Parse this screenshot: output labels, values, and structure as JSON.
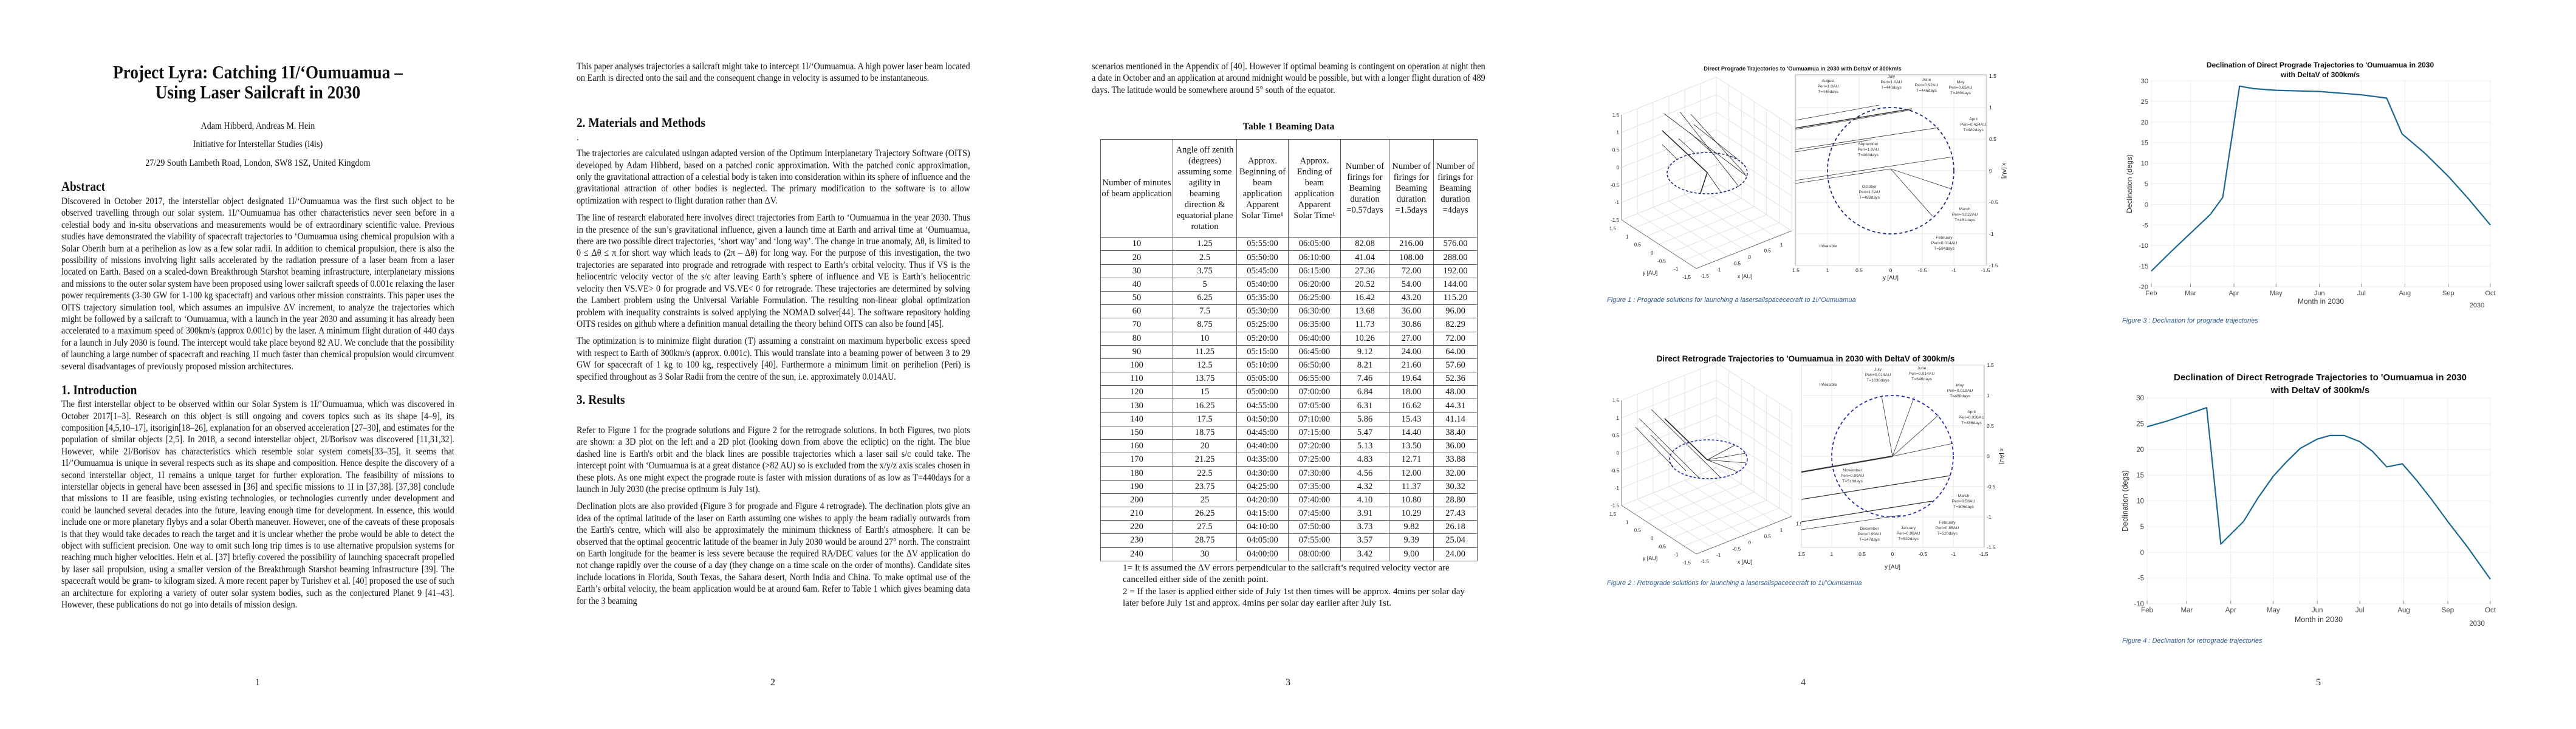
{
  "page1": {
    "title_line1": "Project Lyra: Catching 1I/‘Oumuamua –",
    "title_line2": "Using Laser Sailcraft in 2030",
    "authors": "Adam Hibberd, Andreas M. Hein",
    "institution": "Initiative for Interstellar Studies (i4is)",
    "address": "27/29 South Lambeth Road, London, SW8 1SZ, United Kingdom",
    "abstract_heading": "Abstract",
    "abstract": "Discovered in October 2017, the interstellar object designated 1I/‘Oumuamua was the first such object to be observed travelling through our solar system. 1I/‘Oumuamua has other characteristics never seen before in a celestial body and in-situ observations and measurements would be of extraordinary scientific value. Previous studies have demonstrated the viability of spacecraft trajectories to ‘Oumuamua using chemical propulsion with a Solar Oberth burn at a perihelion as low as a few solar radii. In addition to chemical propulsion, there is also the possibility of missions involving light sails accelerated by the radiation pressure of a laser beam from a laser located on Earth. Based on a scaled-down Breakthrough Starshot beaming infrastructure, interplanetary missions and missions to the outer solar system have been proposed using lower sailcraft speeds of 0.001c relaxing the laser power requirements (3-30 GW for 1-100 kg spacecraft) and various other mission constraints. This paper uses the OITS trajectory simulation tool, which assumes an impulsive ΔV increment, to analyze the trajectories which might be followed by a sailcraft to ‘Oumuamua, with a launch in the year 2030 and assuming it has already been accelerated to a maximum speed of 300km/s (approx 0.001c) by the laser. A minimum flight duration of 440 days for a launch in July 2030 is found. The intercept would take place beyond 82 AU. We conclude that the possibility of launching a large number of spacecraft and reaching 1I much faster than chemical propulsion would circumvent several disadvantages of previously proposed mission architectures.",
    "intro_heading": "1. Introduction",
    "intro": "The first interstellar object to be observed within our Solar System is 1I/’Oumuamua, which was discovered in October 2017[1–3]. Research on this object is still ongoing and covers topics such as its shape [4–9], its composition [4,5,10–17], itsorigin[18–26], explanation for an observed acceleration [27–30], and estimates for the population of similar objects [2,5]. In 2018, a second interstellar object, 2I/Borisov was discovered [11,31,32]. However, while 2I/Borisov has characteristics which resemble solar system comets[33–35], it seems that 1I/’Oumuamua is unique in several respects such as its shape and composition. Hence despite the discovery of a second interstellar object, 1I remains a unique target for further exploration. The feasibility of missions to interstellar objects in general have been assessed in [36] and specific missions to 1I in [37,38]. [37,38] conclude that missions to 1I are feasible, using existing technologies, or technologies currently under development and could be launched several decades into the future, leaving enough time for development. In essence, this would include one or more planetary flybys and a solar Oberth maneuver. However, one of the caveats of these proposals is that they would take decades to reach the target and it is unclear whether the probe would be able to detect the object with sufficient precision. One way to omit such long trip times is to use alternative propulsion systems for reaching much higher velocities. Hein et al. [37] briefly covered the possibility of launching spacecraft propelled by laser sail propulsion, using a smaller version of the Breakthrough Starshot beaming infrastructure [39]. The spacecraft would be gram- to kilogram sized. A more recent paper by Turishev et al. [40] proposed the use of such an architecture for exploring a variety of outer solar system bodies, such as the conjectured Planet 9 [41–43]. However, these publications do not go into details of mission design.",
    "page_number": "1"
  },
  "page2": {
    "p1": "This paper analyses trajectories a sailcraft might take to intercept 1I/‘Oumuamua. A high power laser beam located on Earth is directed onto the sail and the consequent change in velocity is assumed to be instantaneous.",
    "methods_heading": "2. Materials and Methods",
    "stray_dot": ".",
    "p2": "The trajectories are calculated usingan adapted version of the Optimum Interplanetary Trajectory Software (OITS) developed by Adam Hibberd, based on a patched conic approximation. With the patched conic approximation, only the gravitational attraction of a celestial body is taken into consideration within its sphere of influence and the gravitational attraction of other bodies is neglected. The primary modification to the software is to allow optimization with respect to flight duration rather than ΔV.",
    "p3": "The line of research elaborated here involves direct trajectories from Earth to ‘Oumuamua in the year 2030. Thus in the presence of the sun’s gravitational influence, given a launch time at Earth and arrival time at ‘Oumuamua, there are two possible direct trajectories, ‘short way’ and ‘long way’. The change in true anomaly, Δθ, is limited to 0 ≤ Δθ ≤ π for short way which leads to (2π – Δθ) for long way. For the purpose of this investigation, the two trajectories are separated into prograde and retrograde with respect to Earth’s orbital velocity. Thus if VS is the heliocentric velocity vector of the s/c after leaving Earth’s sphere of influence and VE is Earth’s heliocentric velocity then VS.VE> 0 for prograde and VS.VE< 0 for retrograde. These trajectories are determined by solving the Lambert problem using the Universal Variable Formulation. The resulting non-linear global optimization problem with inequality constraints is solved applying the NOMAD solver[44]. The software repository holding OITS resides on github where a definition manual detailing the theory behind OITS can also be found [45].",
    "p4": "The optimization is to minimize flight duration (T) assuming a constraint on maximum hyperbolic excess speed with respect to Earth of 300km/s (approx. 0.001c). This would translate into a beaming power of between 3 to 29 GW for spacecraft of 1 kg to 100 kg, respectively [40]. Furthermore a minimum limit on perihelion (Peri) is specified throughout as 3 Solar Radii from the centre of the sun, i.e. approximately 0.014AU.",
    "results_heading": "3. Results",
    "p5": "Refer to Figure 1 for the prograde solutions and Figure 2 for the retrograde solutions. In both Figures, two plots are shown: a 3D plot on the left and a 2D plot (looking down from above the ecliptic) on the right. The blue dashed line is Earth's orbit and the black lines are possible trajectories which a laser sail s/c could take. The intercept point with ‘Oumuamua is at a great distance (>82 AU) so is excluded from the x/y/z axis scales chosen in these plots. As one might expect the prograde route is faster with mission durations of as low as T=440days for a launch in July 2030 (the precise optimum is July 1st).",
    "p6": "Declination plots are also provided (Figure 3 for prograde and Figure 4 retrograde). The declination plots give an idea of the optimal latitude of the laser on Earth assuming one wishes to apply the beam radially outwards from the Earth's centre, which will also be approximately the minimum thickness of Earth's atmosphere. It can be observed that the optimal geocentric latitude of the beamer in July 2030 would be around 27° north. The constraint on Earth longitude for the beamer is less severe because the required RA/DEC values for the ΔV application do not change rapidly over the course of a day (they change on a time scale on the order of months). Candidate sites include locations in Florida, South Texas, the Sahara desert, North India and China. To make optimal use of the Earth’s orbital velocity, the beam application would be at around 6am. Refer to Table 1 which gives beaming data for the 3 beaming",
    "page_number": "2"
  },
  "page3": {
    "p1": "scenarios mentioned in the Appendix of [40]. However if optimal beaming is contingent on operation at night then a date in October and an application at around midnight would be possible, but with a longer flight duration of 489 days. The latitude would be somewhere around 5° south of the equator.",
    "table_title": "Table 1 Beaming Data",
    "table_headers": [
      "Number of minutes of beam application",
      "Angle off zenith (degrees) assuming some agility in beaming direction & equatorial plane rotation",
      "Approx. Beginning of beam application Apparent Solar Time¹",
      "Approx. Ending of beam application Apparent Solar Time¹",
      "Number of firings for Beaming duration =0.57days",
      "Number of firings for Beaming duration =1.5days",
      "Number of firings for Beaming duration =4days"
    ],
    "table_rows": [
      [
        "10",
        "1.25",
        "05:55:00",
        "06:05:00",
        "82.08",
        "216.00",
        "576.00"
      ],
      [
        "20",
        "2.5",
        "05:50:00",
        "06:10:00",
        "41.04",
        "108.00",
        "288.00"
      ],
      [
        "30",
        "3.75",
        "05:45:00",
        "06:15:00",
        "27.36",
        "72.00",
        "192.00"
      ],
      [
        "40",
        "5",
        "05:40:00",
        "06:20:00",
        "20.52",
        "54.00",
        "144.00"
      ],
      [
        "50",
        "6.25",
        "05:35:00",
        "06:25:00",
        "16.42",
        "43.20",
        "115.20"
      ],
      [
        "60",
        "7.5",
        "05:30:00",
        "06:30:00",
        "13.68",
        "36.00",
        "96.00"
      ],
      [
        "70",
        "8.75",
        "05:25:00",
        "06:35:00",
        "11.73",
        "30.86",
        "82.29"
      ],
      [
        "80",
        "10",
        "05:20:00",
        "06:40:00",
        "10.26",
        "27.00",
        "72.00"
      ],
      [
        "90",
        "11.25",
        "05:15:00",
        "06:45:00",
        "9.12",
        "24.00",
        "64.00"
      ],
      [
        "100",
        "12.5",
        "05:10:00",
        "06:50:00",
        "8.21",
        "21.60",
        "57.60"
      ],
      [
        "110",
        "13.75",
        "05:05:00",
        "06:55:00",
        "7.46",
        "19.64",
        "52.36"
      ],
      [
        "120",
        "15",
        "05:00:00",
        "07:00:00",
        "6.84",
        "18.00",
        "48.00"
      ],
      [
        "130",
        "16.25",
        "04:55:00",
        "07:05:00",
        "6.31",
        "16.62",
        "44.31"
      ],
      [
        "140",
        "17.5",
        "04:50:00",
        "07:10:00",
        "5.86",
        "15.43",
        "41.14"
      ],
      [
        "150",
        "18.75",
        "04:45:00",
        "07:15:00",
        "5.47",
        "14.40",
        "38.40"
      ],
      [
        "160",
        "20",
        "04:40:00",
        "07:20:00",
        "5.13",
        "13.50",
        "36.00"
      ],
      [
        "170",
        "21.25",
        "04:35:00",
        "07:25:00",
        "4.83",
        "12.71",
        "33.88"
      ],
      [
        "180",
        "22.5",
        "04:30:00",
        "07:30:00",
        "4.56",
        "12.00",
        "32.00"
      ],
      [
        "190",
        "23.75",
        "04:25:00",
        "07:35:00",
        "4.32",
        "11.37",
        "30.32"
      ],
      [
        "200",
        "25",
        "04:20:00",
        "07:40:00",
        "4.10",
        "10.80",
        "28.80"
      ],
      [
        "210",
        "26.25",
        "04:15:00",
        "07:45:00",
        "3.91",
        "10.29",
        "27.43"
      ],
      [
        "220",
        "27.5",
        "04:10:00",
        "07:50:00",
        "3.73",
        "9.82",
        "26.18"
      ],
      [
        "230",
        "28.75",
        "04:05:00",
        "07:55:00",
        "3.57",
        "9.39",
        "25.04"
      ],
      [
        "240",
        "30",
        "04:00:00",
        "08:00:00",
        "3.42",
        "9.00",
        "24.00"
      ]
    ],
    "footnote1": "1=  It is assumed the ΔV errors perpendicular to the sailcraft’s required velocity vector are cancelled either side of the zenith point.",
    "footnote2": "2 = If the laser is applied either side of July 1st then times will be approx. 4mins per solar day later before July 1st and approx. 4mins per solar day earlier after July 1st.",
    "page_number": "3"
  },
  "page4": {
    "page_number": "4",
    "fig1": {
      "title": "Direct Prograde Trajectories to 'Oumuamua in 2030 with DeltaV of 300km/s",
      "caption": "Figure 1 : Prograde solutions for launching a lasersailspacececraft to 1I/’Oumuamua",
      "earth_orbit_color": "#1f2f7a",
      "annotations": [
        {
          "lines": [
            "August",
            "Peri=1.0AU",
            "T=446days"
          ]
        },
        {
          "lines": [
            "July",
            "Peri=1.0AU",
            "T=440days"
          ]
        },
        {
          "lines": [
            "June",
            "Peri=0.92AU",
            "T=446days"
          ]
        },
        {
          "lines": [
            "May",
            "Peri=0.65AU",
            "T=460days"
          ]
        },
        {
          "lines": [
            "April",
            "Peri=0.424AU",
            "T=482days"
          ]
        },
        {
          "lines": [
            "September",
            "Peri=1.0AU",
            "T=463days"
          ]
        },
        {
          "lines": [
            "October",
            "Peri=1.0AU",
            "T=489days"
          ]
        },
        {
          "lines": [
            "March",
            "Peri=0.022AU",
            "T=481days"
          ]
        },
        {
          "lines": [
            "February",
            "Peri=0.014AU",
            "T=584days"
          ]
        },
        {
          "lines": [
            "Infeasible"
          ]
        }
      ]
    },
    "fig2": {
      "title": "Direct Retrograde Trajectories to 'Oumuamua in 2030 with DeltaV of 300km/s",
      "caption": "Figure 2 : Retrograde solutions for launching a lasersailspacececraft to 1I/’Oumuamua",
      "earth_orbit_color": "#2430a8",
      "annotations": [
        {
          "lines": [
            "Infeasible"
          ]
        },
        {
          "lines": [
            "July",
            "Peri=0.014AU",
            "T=1030days"
          ]
        },
        {
          "lines": [
            "June",
            "Peri=0.014AU",
            "T=646days"
          ]
        },
        {
          "lines": [
            "May",
            "Peri=0.019AU",
            "T=490days"
          ]
        },
        {
          "lines": [
            "April",
            "Peri=0.036AU",
            "T=486days"
          ]
        },
        {
          "lines": [
            "November",
            "Peri=0.99AU",
            "T=518days"
          ]
        },
        {
          "lines": [
            "March",
            "Peri=0.58AU",
            "T=506days"
          ]
        },
        {
          "lines": [
            "December",
            "Peri=0.99AU",
            "T=547days"
          ]
        },
        {
          "lines": [
            "January",
            "Peri=0.98AU",
            "T=522days"
          ]
        },
        {
          "lines": [
            "February",
            "Peri=0.86AU",
            "T=520days"
          ]
        }
      ]
    },
    "axis_ticks": [
      "1.5",
      "1",
      "0.5",
      "0",
      "-0.5",
      "-1",
      "-1.5"
    ],
    "x_axis_label": "x [AU]",
    "y_axis_label": "y [AU]"
  },
  "page5": {
    "page_number": "5",
    "fig3_caption": "Figure 3 : Declination for prograde trajectories",
    "fig4_caption": "Figure 4 : Declination for retrograde trajectories"
  },
  "chart_data": [
    {
      "type": "line",
      "title": "Declination of Direct Prograde Trajectories to 'Oumuamua in 2030",
      "subtitle": "with DeltaV of 300km/s",
      "xlabel": "Month in 2030",
      "x_secondary_label": "2030",
      "ylabel": "Declination (degs)",
      "xlim": [
        "2030-02-01",
        "2030-10-01"
      ],
      "ylim": [
        -20,
        30
      ],
      "x_ticks": [
        "Feb",
        "Mar",
        "Apr",
        "May",
        "Jun",
        "Jul",
        "Aug",
        "Sep",
        "Oct"
      ],
      "y_ticks": [
        30,
        25,
        20,
        15,
        10,
        5,
        0,
        -5,
        -10,
        -15,
        -20
      ],
      "grid": true,
      "line_color": "#1b6790",
      "x": [
        "2030-02-01",
        "2030-02-15",
        "2030-03-01",
        "2030-03-15",
        "2030-03-24",
        "2030-04-05",
        "2030-04-15",
        "2030-05-01",
        "2030-06-01",
        "2030-07-01",
        "2030-07-19",
        "2030-07-30",
        "2030-08-15",
        "2030-09-01",
        "2030-09-15",
        "2030-10-01"
      ],
      "y": [
        -16.2,
        -11.5,
        -7.0,
        -2.5,
        1.7,
        28.7,
        28.1,
        27.7,
        27.4,
        26.6,
        25.8,
        17.1,
        12.5,
        6.8,
        1.5,
        -5.0
      ]
    },
    {
      "type": "line",
      "title": "Declination of Direct Retrograde Trajectories to 'Oumuamua in 2030",
      "subtitle": "with DeltaV of 300km/s",
      "xlabel": "Month in 2030",
      "x_secondary_label": "2030",
      "ylabel": "Declination (degs)",
      "xlim": [
        "2030-02-01",
        "2030-10-01"
      ],
      "ylim": [
        -10,
        30
      ],
      "x_ticks": [
        "Feb",
        "Mar",
        "Apr",
        "May",
        "Jun",
        "Jul",
        "Aug",
        "Sep",
        "Oct"
      ],
      "y_ticks": [
        30,
        25,
        20,
        15,
        10,
        5,
        0,
        -5,
        -10
      ],
      "grid": true,
      "line_color": "#1b6790",
      "x": [
        "2030-02-01",
        "2030-02-15",
        "2030-03-01",
        "2030-03-15",
        "2030-03-25",
        "2030-04-10",
        "2030-04-20",
        "2030-05-01",
        "2030-05-10",
        "2030-05-20",
        "2030-06-01",
        "2030-06-10",
        "2030-06-20",
        "2030-07-01",
        "2030-07-10",
        "2030-07-20",
        "2030-07-31",
        "2030-08-10",
        "2030-08-20",
        "2030-09-01",
        "2030-09-15",
        "2030-10-01"
      ],
      "y": [
        24.4,
        25.5,
        26.8,
        28.1,
        1.6,
        6.0,
        10.5,
        14.8,
        17.5,
        20.2,
        22.0,
        22.7,
        22.7,
        21.5,
        19.6,
        16.6,
        17.2,
        14.0,
        10.5,
        6.0,
        1.0,
        -5.2
      ]
    }
  ]
}
